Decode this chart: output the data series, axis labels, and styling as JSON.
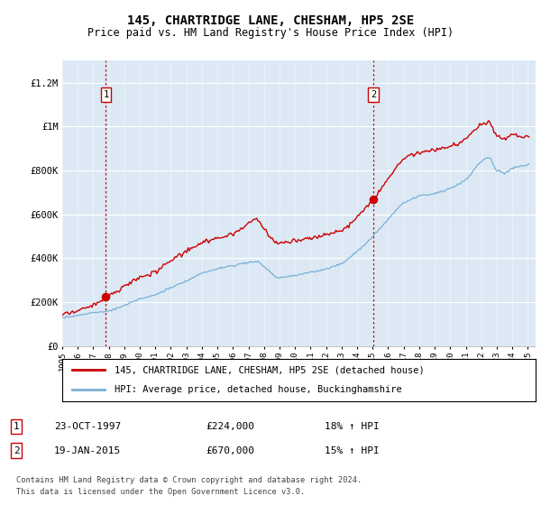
{
  "title": "145, CHARTRIDGE LANE, CHESHAM, HP5 2SE",
  "subtitle": "Price paid vs. HM Land Registry's House Price Index (HPI)",
  "legend_line1": "145, CHARTRIDGE LANE, CHESHAM, HP5 2SE (detached house)",
  "legend_line2": "HPI: Average price, detached house, Buckinghamshire",
  "transaction1_date": "23-OCT-1997",
  "transaction1_price": "£224,000",
  "transaction1_hpi": "18% ↑ HPI",
  "transaction2_date": "19-JAN-2015",
  "transaction2_price": "£670,000",
  "transaction2_hpi": "15% ↑ HPI",
  "footnote1": "Contains HM Land Registry data © Crown copyright and database right 2024.",
  "footnote2": "This data is licensed under the Open Government Licence v3.0.",
  "red_color": "#cc0000",
  "blue_color": "#7aafd4",
  "plot_bg_color": "#dce9f5",
  "ylim": [
    0,
    1300000
  ],
  "yticks": [
    0,
    200000,
    400000,
    600000,
    800000,
    1000000,
    1200000
  ],
  "ytick_labels": [
    "£0",
    "£200K",
    "£400K",
    "£600K",
    "£800K",
    "£1M",
    "£1.2M"
  ],
  "transaction1_x": 1997.81,
  "transaction1_y": 224000,
  "transaction2_x": 2015.05,
  "transaction2_y": 670000,
  "xlim_start": 1995,
  "xlim_end": 2025.5
}
